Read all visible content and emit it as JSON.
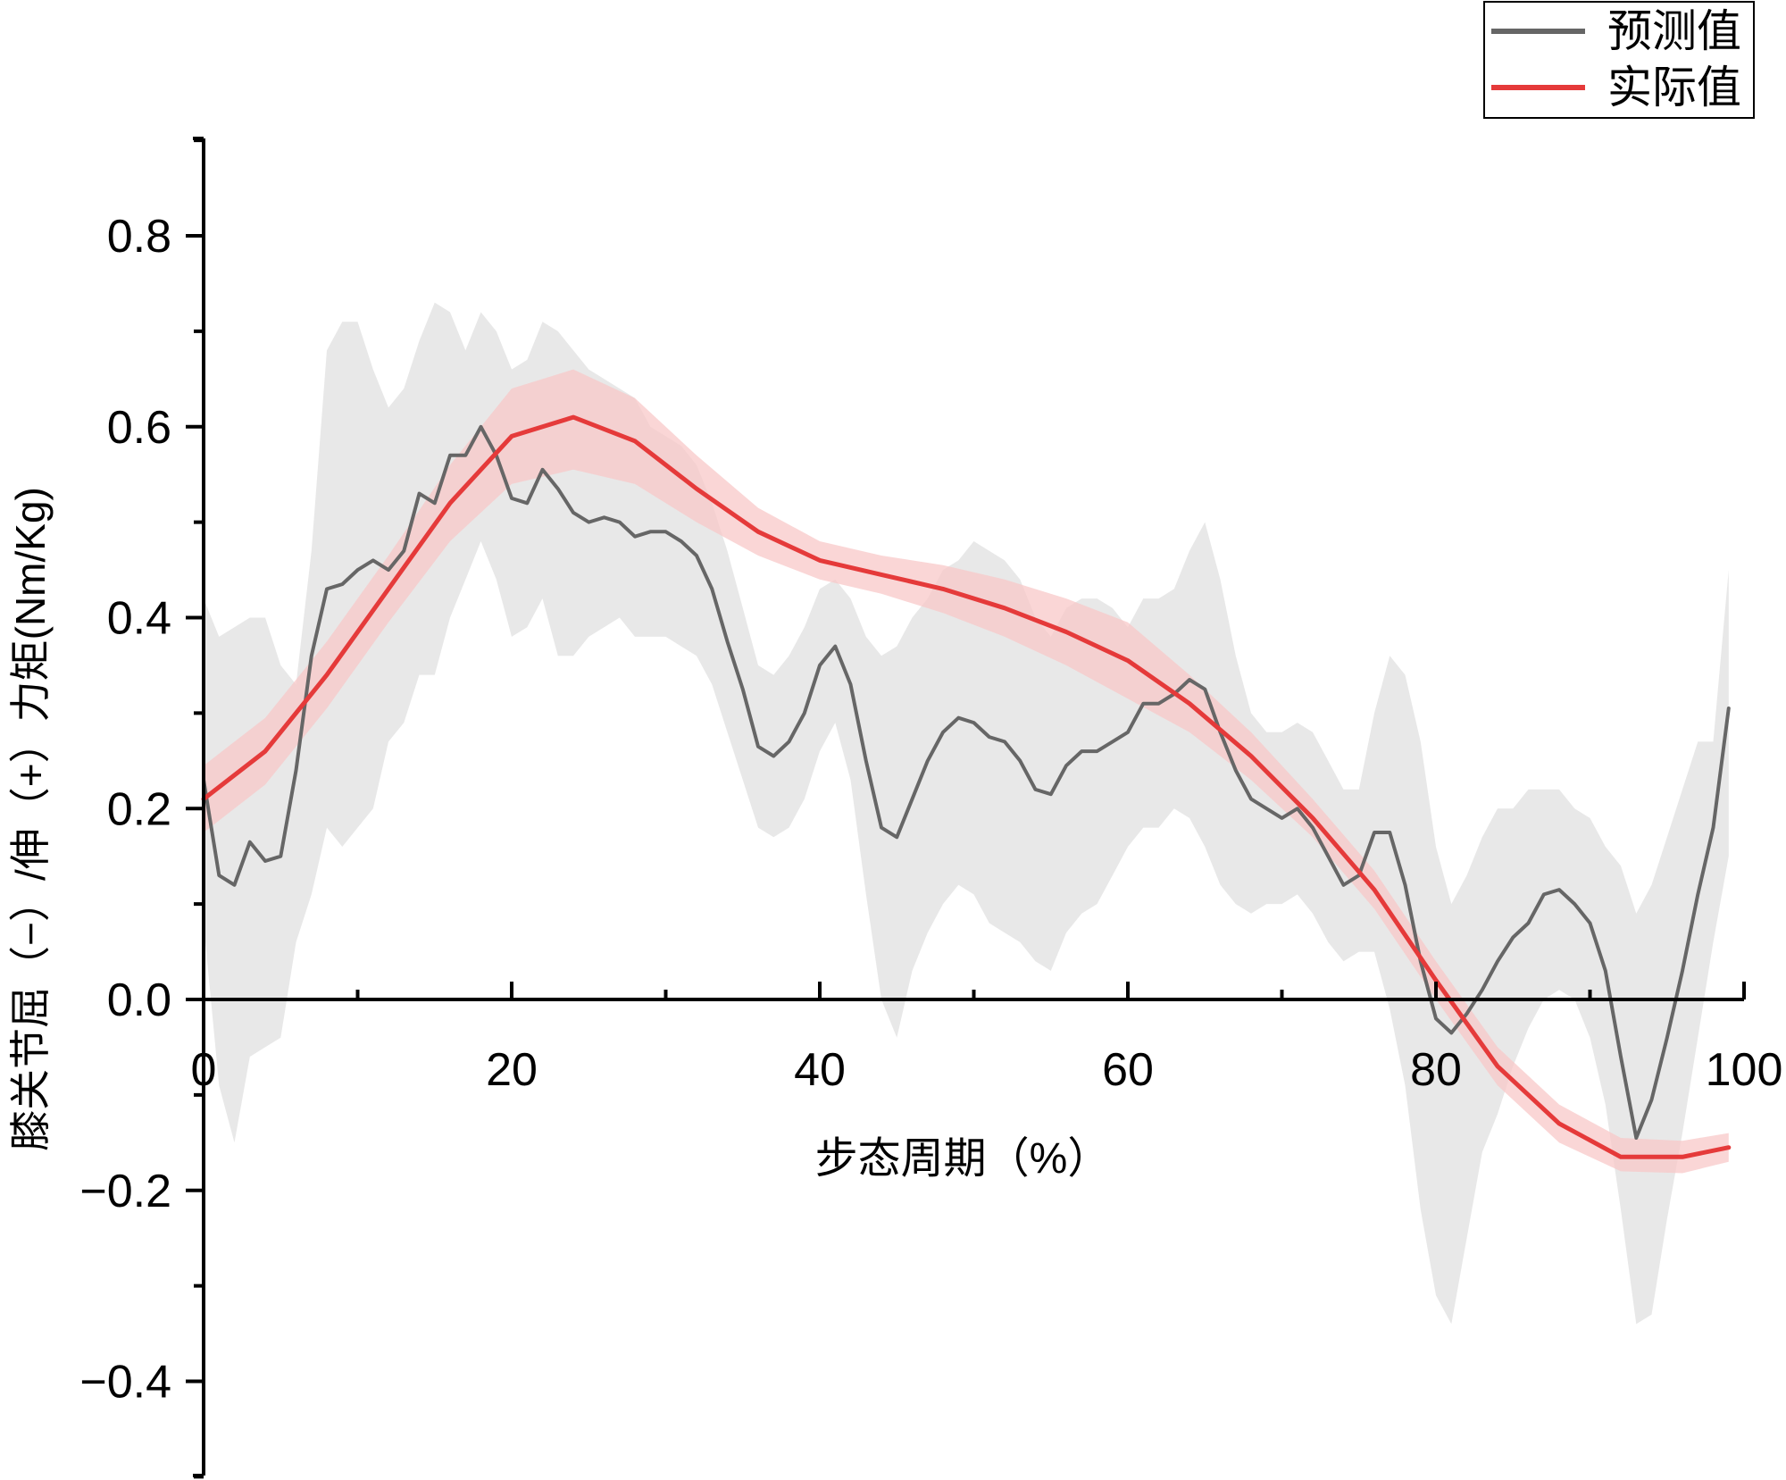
{
  "chart_data": {
    "type": "line",
    "xlabel": "步态周期（%）",
    "ylabel": "膝关节屈（−）/伸（+）力矩(Nm/Kg)",
    "xlim": [
      0,
      100
    ],
    "ylim": [
      -0.5,
      0.9
    ],
    "xticks": [
      0,
      20,
      40,
      60,
      80,
      100
    ],
    "xtick_labels": [
      "0",
      "20",
      "40",
      "60",
      "80",
      "100"
    ],
    "yticks": [
      -0.4,
      -0.2,
      0.0,
      0.2,
      0.4,
      0.6,
      0.8
    ],
    "ytick_labels": [
      "−0.4",
      "−0.2",
      "0.0",
      "0.2",
      "0.4",
      "0.6",
      "0.8"
    ],
    "grid": false,
    "legend_position": "top-right",
    "series": [
      {
        "name": "预测值",
        "color": "#666666",
        "band_color": "#e4e4e4",
        "x": [
          0,
          1,
          2,
          3,
          4,
          5,
          6,
          7,
          8,
          9,
          10,
          11,
          12,
          13,
          14,
          15,
          16,
          17,
          18,
          19,
          20,
          21,
          22,
          23,
          24,
          25,
          26,
          27,
          28,
          29,
          30,
          31,
          32,
          33,
          34,
          35,
          36,
          37,
          38,
          39,
          40,
          41,
          42,
          43,
          44,
          45,
          46,
          47,
          48,
          49,
          50,
          51,
          52,
          53,
          54,
          55,
          56,
          57,
          58,
          59,
          60,
          61,
          62,
          63,
          64,
          65,
          66,
          67,
          68,
          69,
          70,
          71,
          72,
          73,
          74,
          75,
          76,
          77,
          78,
          79,
          80,
          81,
          82,
          83,
          84,
          85,
          86,
          87,
          88,
          89,
          90,
          91,
          92,
          93,
          94,
          95,
          96,
          97,
          98,
          99
        ],
        "values": [
          0.23,
          0.13,
          0.12,
          0.165,
          0.145,
          0.15,
          0.24,
          0.36,
          0.43,
          0.435,
          0.45,
          0.46,
          0.45,
          0.47,
          0.53,
          0.52,
          0.57,
          0.57,
          0.6,
          0.57,
          0.525,
          0.52,
          0.555,
          0.535,
          0.51,
          0.5,
          0.505,
          0.5,
          0.485,
          0.49,
          0.49,
          0.48,
          0.465,
          0.43,
          0.375,
          0.325,
          0.265,
          0.255,
          0.27,
          0.3,
          0.35,
          0.37,
          0.33,
          0.25,
          0.18,
          0.17,
          0.21,
          0.25,
          0.28,
          0.295,
          0.29,
          0.275,
          0.27,
          0.25,
          0.22,
          0.215,
          0.245,
          0.26,
          0.26,
          0.27,
          0.28,
          0.31,
          0.31,
          0.32,
          0.335,
          0.325,
          0.28,
          0.24,
          0.21,
          0.2,
          0.19,
          0.2,
          0.18,
          0.15,
          0.12,
          0.13,
          0.175,
          0.175,
          0.12,
          0.04,
          -0.02,
          -0.035,
          -0.015,
          0.01,
          0.04,
          0.065,
          0.08,
          0.11,
          0.115,
          0.1,
          0.08,
          0.03,
          -0.06,
          -0.145,
          -0.105,
          -0.04,
          0.03,
          0.11,
          0.18,
          0.305
        ],
        "upper": [
          0.42,
          0.38,
          0.39,
          0.4,
          0.4,
          0.35,
          0.33,
          0.47,
          0.68,
          0.71,
          0.71,
          0.66,
          0.62,
          0.64,
          0.69,
          0.73,
          0.72,
          0.68,
          0.72,
          0.7,
          0.66,
          0.67,
          0.71,
          0.7,
          0.68,
          0.66,
          0.65,
          0.64,
          0.63,
          0.6,
          0.59,
          0.58,
          0.56,
          0.52,
          0.47,
          0.41,
          0.35,
          0.34,
          0.36,
          0.39,
          0.43,
          0.44,
          0.42,
          0.38,
          0.36,
          0.37,
          0.4,
          0.42,
          0.45,
          0.46,
          0.48,
          0.47,
          0.46,
          0.44,
          0.4,
          0.38,
          0.41,
          0.42,
          0.42,
          0.41,
          0.39,
          0.42,
          0.42,
          0.43,
          0.47,
          0.5,
          0.44,
          0.36,
          0.3,
          0.28,
          0.28,
          0.29,
          0.28,
          0.25,
          0.22,
          0.22,
          0.3,
          0.36,
          0.34,
          0.27,
          0.16,
          0.1,
          0.13,
          0.17,
          0.2,
          0.2,
          0.22,
          0.22,
          0.22,
          0.2,
          0.19,
          0.16,
          0.14,
          0.09,
          0.12,
          0.17,
          0.22,
          0.27,
          0.27,
          0.45
        ],
        "lower": [
          0.08,
          -0.09,
          -0.15,
          -0.06,
          -0.05,
          -0.04,
          0.06,
          0.11,
          0.18,
          0.16,
          0.18,
          0.2,
          0.27,
          0.29,
          0.34,
          0.34,
          0.4,
          0.44,
          0.48,
          0.44,
          0.38,
          0.39,
          0.42,
          0.36,
          0.36,
          0.38,
          0.39,
          0.4,
          0.38,
          0.38,
          0.38,
          0.37,
          0.36,
          0.33,
          0.28,
          0.23,
          0.18,
          0.17,
          0.18,
          0.21,
          0.26,
          0.29,
          0.23,
          0.11,
          0.0,
          -0.04,
          0.03,
          0.07,
          0.1,
          0.12,
          0.11,
          0.08,
          0.07,
          0.06,
          0.04,
          0.03,
          0.07,
          0.09,
          0.1,
          0.13,
          0.16,
          0.18,
          0.18,
          0.2,
          0.19,
          0.16,
          0.12,
          0.1,
          0.09,
          0.1,
          0.1,
          0.11,
          0.09,
          0.06,
          0.04,
          0.05,
          0.05,
          -0.01,
          -0.09,
          -0.22,
          -0.31,
          -0.34,
          -0.25,
          -0.16,
          -0.12,
          -0.07,
          -0.03,
          0.0,
          0.01,
          0.0,
          -0.04,
          -0.11,
          -0.22,
          -0.34,
          -0.33,
          -0.23,
          -0.14,
          -0.04,
          0.06,
          0.15
        ]
      },
      {
        "name": "实际值",
        "color": "#e53a3a",
        "band_color": "#f8c8c8",
        "x": [
          0,
          4,
          8,
          12,
          16,
          20,
          24,
          28,
          32,
          36,
          40,
          44,
          48,
          52,
          56,
          60,
          64,
          68,
          72,
          76,
          80,
          84,
          88,
          92,
          96,
          99
        ],
        "values": [
          0.21,
          0.26,
          0.34,
          0.43,
          0.52,
          0.59,
          0.61,
          0.585,
          0.535,
          0.49,
          0.46,
          0.445,
          0.43,
          0.41,
          0.385,
          0.355,
          0.31,
          0.255,
          0.19,
          0.115,
          0.02,
          -0.07,
          -0.13,
          -0.165,
          -0.165,
          -0.155
        ],
        "upper": [
          0.245,
          0.295,
          0.375,
          0.465,
          0.56,
          0.64,
          0.66,
          0.63,
          0.57,
          0.515,
          0.48,
          0.465,
          0.455,
          0.44,
          0.42,
          0.395,
          0.34,
          0.28,
          0.21,
          0.135,
          0.04,
          -0.05,
          -0.11,
          -0.145,
          -0.148,
          -0.14
        ],
        "lower": [
          0.175,
          0.225,
          0.305,
          0.395,
          0.48,
          0.54,
          0.555,
          0.54,
          0.5,
          0.465,
          0.44,
          0.425,
          0.405,
          0.38,
          0.35,
          0.315,
          0.28,
          0.23,
          0.17,
          0.095,
          0.0,
          -0.09,
          -0.15,
          -0.18,
          -0.182,
          -0.17
        ]
      }
    ]
  }
}
